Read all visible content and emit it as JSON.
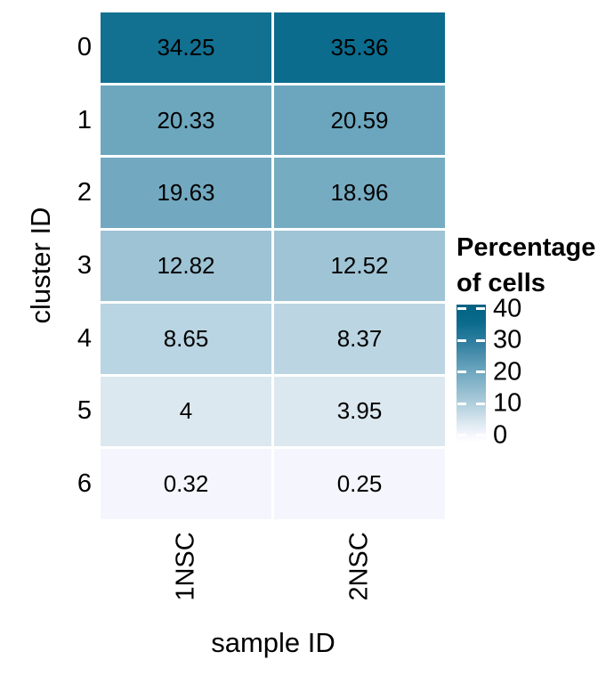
{
  "figure": {
    "background": "#ffffff",
    "text_color": "#000000"
  },
  "chart_data": {
    "type": "heatmap",
    "title": "",
    "xlabel": "sample ID",
    "ylabel": "cluster ID",
    "x_categories": [
      "1NSC",
      "2NSC"
    ],
    "y_categories": [
      "0",
      "1",
      "2",
      "3",
      "4",
      "5",
      "6"
    ],
    "series": [
      {
        "name": "1NSC",
        "values": [
          34.25,
          20.33,
          19.63,
          12.82,
          8.65,
          4,
          0.32
        ]
      },
      {
        "name": "2NSC",
        "values": [
          35.36,
          20.59,
          18.96,
          12.52,
          8.37,
          3.95,
          0.25
        ]
      }
    ],
    "grid": false,
    "legend": {
      "title": "Percentage of cells",
      "position": "right",
      "ticks": [
        40,
        30,
        20,
        10,
        0
      ],
      "bar_range": [
        -2,
        41.4
      ]
    },
    "color_scale": {
      "type": "gradient",
      "low_label": "0",
      "high_label": "40",
      "anchors": [
        {
          "v": -2,
          "c": "#ffffff"
        },
        {
          "v": 0,
          "c": "#f7f7fe"
        },
        {
          "v": 4,
          "c": "#dce8f0"
        },
        {
          "v": 8.5,
          "c": "#bad5e2"
        },
        {
          "v": 12.7,
          "c": "#9ec3d4"
        },
        {
          "v": 20.5,
          "c": "#6ca6be"
        },
        {
          "v": 28,
          "c": "#3a84a4"
        },
        {
          "v": 35.4,
          "c": "#0b6c8e"
        },
        {
          "v": 41.4,
          "c": "#036181"
        }
      ]
    }
  }
}
